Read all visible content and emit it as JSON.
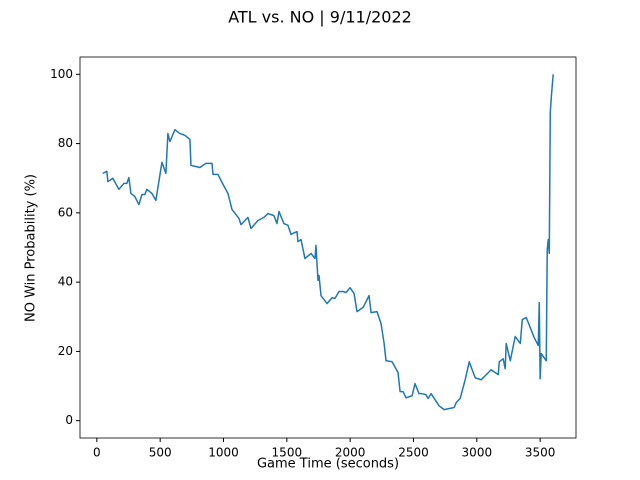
{
  "chart_data": {
    "type": "line",
    "title": "ATL vs. NO | 9/11/2022",
    "x_label": "Game Time (seconds)",
    "y_label": "NO Win Probability (%)",
    "xlim": [
      -133,
      3783
    ],
    "ylim": [
      -5,
      105
    ],
    "xticks": [
      0,
      500,
      1000,
      1500,
      2000,
      2500,
      3000,
      3500
    ],
    "yticks": [
      0,
      20,
      40,
      60,
      80,
      100
    ],
    "series": [
      {
        "color": "#1f77b4",
        "x": [
          47,
          79,
          87,
          126,
          174,
          213,
          237,
          253,
          269,
          300,
          332,
          356,
          379,
          395,
          435,
          466,
          514,
          545,
          561,
          577,
          616,
          656,
          695,
          735,
          743,
          814,
          861,
          909,
          917,
          956,
          988,
          1035,
          1067,
          1122,
          1138,
          1193,
          1217,
          1272,
          1319,
          1351,
          1398,
          1422,
          1438,
          1477,
          1509,
          1533,
          1580,
          1588,
          1612,
          1643,
          1691,
          1722,
          1730,
          1746,
          1754,
          1770,
          1793,
          1817,
          1857,
          1880,
          1912,
          1944,
          1967,
          1999,
          2031,
          2054,
          2102,
          2149,
          2165,
          2212,
          2244,
          2268,
          2283,
          2331,
          2378,
          2394,
          2418,
          2441,
          2489,
          2512,
          2544,
          2568,
          2599,
          2615,
          2639,
          2702,
          2742,
          2821,
          2837,
          2868,
          2908,
          2940,
          2987,
          3034,
          3113,
          3169,
          3177,
          3208,
          3224,
          3232,
          3264,
          3303,
          3343,
          3359,
          3390,
          3453,
          3485,
          3493,
          3500,
          3508,
          3548,
          3556,
          3564,
          3572,
          3580,
          3588,
          3603
        ],
        "values": [
          71.4,
          72,
          69,
          70,
          66.8,
          68.5,
          68.5,
          70.2,
          65.6,
          64.7,
          62.4,
          65.3,
          65.3,
          66.8,
          65.6,
          63.6,
          74.6,
          71.4,
          82.9,
          80.6,
          84,
          82.9,
          82.4,
          81.2,
          73.7,
          73.1,
          74.3,
          74.3,
          71.1,
          71.1,
          68.8,
          65.6,
          61,
          58.4,
          56.6,
          58.7,
          55.5,
          57.8,
          58.7,
          59.8,
          59.2,
          56.9,
          60.4,
          56.9,
          56.4,
          53.8,
          54.6,
          51.7,
          52.3,
          46.8,
          48.3,
          46.8,
          50.6,
          40.5,
          41.9,
          36.1,
          35,
          33.8,
          35.5,
          35.3,
          37.3,
          37.3,
          37,
          38.4,
          36.7,
          31.5,
          32.7,
          36.1,
          31.2,
          31.5,
          28,
          22.3,
          17.3,
          17,
          13.9,
          8.4,
          8.4,
          6.6,
          7.2,
          10.7,
          7.8,
          7.8,
          7.5,
          6.4,
          7.8,
          4.3,
          3.2,
          3.8,
          5.2,
          6.4,
          11.8,
          17,
          12.4,
          11.8,
          14.7,
          13.3,
          17,
          17.9,
          15,
          22.3,
          17.3,
          24.3,
          22.3,
          29.2,
          29.8,
          24,
          21.7,
          34.1,
          12.1,
          19.4,
          17.3,
          49.4,
          52.3,
          48.3,
          89,
          93.4,
          100
        ]
      }
    ]
  }
}
